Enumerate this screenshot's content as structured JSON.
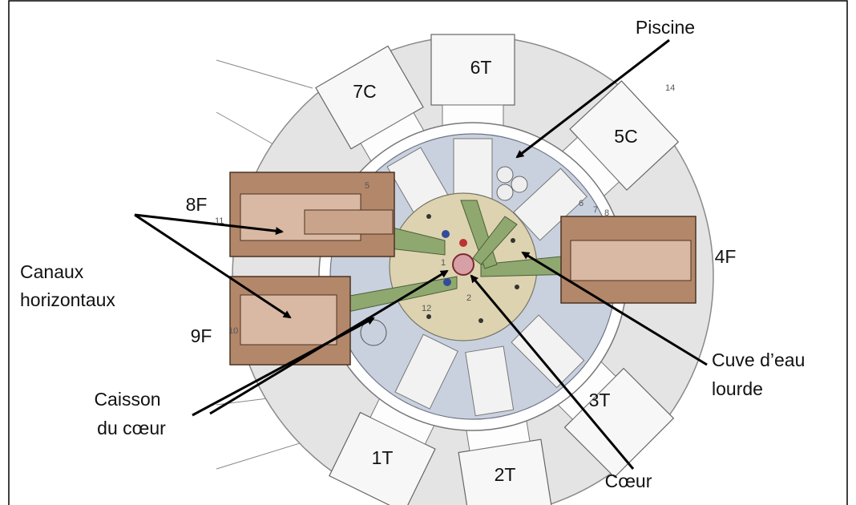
{
  "labels": {
    "piscine": "Piscine",
    "ports": {
      "6T": "6T",
      "7C": "7C",
      "5C": "5C",
      "8F": "8F",
      "4F": "4F",
      "9F": "9F",
      "3T": "3T",
      "1T": "1T",
      "2T": "2T"
    },
    "canaux": [
      "Canaux",
      "horizontaux"
    ],
    "caisson": [
      "Caisson",
      "du cœur"
    ],
    "cuve": [
      "Cuve d’eau",
      "lourde"
    ],
    "coeur": "Cœur"
  },
  "small_numbers": [
    "14",
    "5",
    "6",
    "7",
    "8",
    "11",
    "10",
    "1",
    "2",
    "12"
  ]
}
